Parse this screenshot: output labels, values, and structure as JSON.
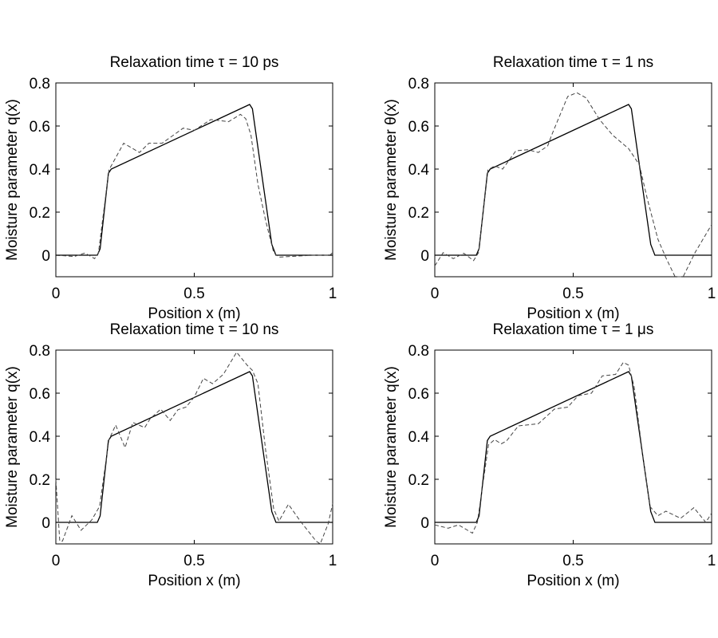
{
  "chart_data": [
    {
      "type": "line",
      "title": "Relaxation time τ = 10 ps",
      "xlabel": "Position x  (m)",
      "ylabel": "Moisture parameter q(x)",
      "xlim": [
        0,
        1
      ],
      "ylim": [
        -0.1,
        0.8
      ],
      "xticks": [
        "0",
        "0.5",
        "1"
      ],
      "yticks": [
        "0",
        "0.2",
        "0.4",
        "0.6",
        "0.8"
      ],
      "grid": false,
      "series": [
        {
          "style": "solid",
          "points": [
            [
              0,
              0
            ],
            [
              0.15,
              0
            ],
            [
              0.16,
              0.03
            ],
            [
              0.19,
              0.38
            ],
            [
              0.2,
              0.4
            ],
            [
              0.7,
              0.7
            ],
            [
              0.71,
              0.68
            ],
            [
              0.73,
              0.5
            ],
            [
              0.78,
              0.05
            ],
            [
              0.795,
              0
            ],
            [
              1,
              0
            ]
          ]
        },
        {
          "style": "dashed",
          "points": [
            [
              0,
              0
            ],
            [
              0.067,
              -0.006
            ],
            [
              0.105,
              0.01
            ],
            [
              0.14,
              -0.016
            ],
            [
              0.154,
              0.012
            ],
            [
              0.192,
              0.396
            ],
            [
              0.245,
              0.52
            ],
            [
              0.302,
              0.477
            ],
            [
              0.336,
              0.52
            ],
            [
              0.384,
              0.52
            ],
            [
              0.46,
              0.59
            ],
            [
              0.5,
              0.58
            ],
            [
              0.56,
              0.63
            ],
            [
              0.624,
              0.62
            ],
            [
              0.667,
              0.654
            ],
            [
              0.686,
              0.634
            ],
            [
              0.705,
              0.557
            ],
            [
              0.73,
              0.33
            ],
            [
              0.758,
              0.16
            ],
            [
              0.787,
              0.012
            ],
            [
              0.806,
              -0.009
            ],
            [
              0.93,
              0
            ],
            [
              0.99,
              0
            ],
            [
              1,
              0.012
            ]
          ]
        }
      ]
    },
    {
      "type": "line",
      "title": "Relaxation time τ = 1 ns",
      "xlabel": "Position x  (m)",
      "ylabel": "Moisture parameter θ(x)",
      "xlim": [
        0,
        1
      ],
      "ylim": [
        -0.1,
        0.8
      ],
      "xticks": [
        "0",
        "0.5",
        "1"
      ],
      "yticks": [
        "0",
        "0.2",
        "0.4",
        "0.6",
        "0.8"
      ],
      "grid": false,
      "series": [
        {
          "style": "solid",
          "points": [
            [
              0,
              0
            ],
            [
              0.15,
              0
            ],
            [
              0.16,
              0.03
            ],
            [
              0.19,
              0.38
            ],
            [
              0.2,
              0.4
            ],
            [
              0.7,
              0.7
            ],
            [
              0.71,
              0.68
            ],
            [
              0.73,
              0.5
            ],
            [
              0.78,
              0.05
            ],
            [
              0.795,
              0
            ],
            [
              1,
              0
            ]
          ]
        },
        {
          "style": "dashed",
          "points": [
            [
              0,
              -0.05
            ],
            [
              0.03,
              0.012
            ],
            [
              0.067,
              -0.016
            ],
            [
              0.105,
              0.009
            ],
            [
              0.14,
              -0.025
            ],
            [
              0.158,
              0.012
            ],
            [
              0.192,
              0.396
            ],
            [
              0.216,
              0.415
            ],
            [
              0.245,
              0.4
            ],
            [
              0.293,
              0.485
            ],
            [
              0.336,
              0.49
            ],
            [
              0.374,
              0.477
            ],
            [
              0.408,
              0.508
            ],
            [
              0.422,
              0.557
            ],
            [
              0.48,
              0.737
            ],
            [
              0.513,
              0.755
            ],
            [
              0.547,
              0.73
            ],
            [
              0.595,
              0.63
            ],
            [
              0.643,
              0.557
            ],
            [
              0.7,
              0.495
            ],
            [
              0.739,
              0.42
            ],
            [
              0.768,
              0.26
            ],
            [
              0.806,
              0.074
            ],
            [
              0.835,
              -0.012
            ],
            [
              0.868,
              -0.1
            ],
            [
              0.897,
              -0.1
            ],
            [
              0.94,
              0.012
            ],
            [
              1,
              0.142
            ]
          ]
        }
      ]
    },
    {
      "type": "line",
      "title": "Relaxation time τ = 10 ns",
      "xlabel": "Position x  (m)",
      "ylabel": "Moisture parameter q(x)",
      "xlim": [
        0,
        1
      ],
      "ylim": [
        -0.1,
        0.8
      ],
      "xticks": [
        "0",
        "0.5",
        "1"
      ],
      "yticks": [
        "0",
        "0.2",
        "0.4",
        "0.6",
        "0.8"
      ],
      "grid": false,
      "series": [
        {
          "style": "solid",
          "points": [
            [
              0,
              0
            ],
            [
              0.15,
              0
            ],
            [
              0.16,
              0.03
            ],
            [
              0.19,
              0.38
            ],
            [
              0.2,
              0.4
            ],
            [
              0.7,
              0.7
            ],
            [
              0.71,
              0.68
            ],
            [
              0.73,
              0.5
            ],
            [
              0.78,
              0.05
            ],
            [
              0.795,
              0
            ],
            [
              1,
              0
            ]
          ]
        },
        {
          "style": "dashed",
          "points": [
            [
              0,
              0.2
            ],
            [
              0.014,
              -0.087
            ],
            [
              0.024,
              -0.087
            ],
            [
              0.058,
              0.031
            ],
            [
              0.091,
              -0.037
            ],
            [
              0.13,
              0.012
            ],
            [
              0.158,
              0.074
            ],
            [
              0.192,
              0.384
            ],
            [
              0.216,
              0.452
            ],
            [
              0.25,
              0.347
            ],
            [
              0.278,
              0.464
            ],
            [
              0.321,
              0.44
            ],
            [
              0.34,
              0.48
            ],
            [
              0.379,
              0.526
            ],
            [
              0.413,
              0.473
            ],
            [
              0.441,
              0.523
            ],
            [
              0.47,
              0.535
            ],
            [
              0.5,
              0.582
            ],
            [
              0.533,
              0.669
            ],
            [
              0.566,
              0.644
            ],
            [
              0.605,
              0.687
            ],
            [
              0.653,
              0.79
            ],
            [
              0.691,
              0.73
            ],
            [
              0.71,
              0.706
            ],
            [
              0.73,
              0.644
            ],
            [
              0.758,
              0.334
            ],
            [
              0.787,
              0.062
            ],
            [
              0.806,
              0.006
            ],
            [
              0.84,
              0.084
            ],
            [
              0.883,
              0.006
            ],
            [
              0.94,
              -0.087
            ],
            [
              0.955,
              -0.1
            ],
            [
              0.984,
              -0.006
            ],
            [
              1,
              0.087
            ]
          ]
        }
      ]
    },
    {
      "type": "line",
      "title": "Relaxation time τ = 1 μs",
      "xlabel": "Position x  (m)",
      "ylabel": "Moisture parameter q(x)",
      "xlim": [
        0,
        1
      ],
      "ylim": [
        -0.1,
        0.8
      ],
      "xticks": [
        "0",
        "0.5",
        "1"
      ],
      "yticks": [
        "0",
        "0.2",
        "0.4",
        "0.6",
        "0.8"
      ],
      "grid": false,
      "series": [
        {
          "style": "solid",
          "points": [
            [
              0,
              0
            ],
            [
              0.15,
              0
            ],
            [
              0.16,
              0.03
            ],
            [
              0.19,
              0.38
            ],
            [
              0.2,
              0.4
            ],
            [
              0.7,
              0.7
            ],
            [
              0.71,
              0.68
            ],
            [
              0.73,
              0.5
            ],
            [
              0.78,
              0.05
            ],
            [
              0.795,
              0
            ],
            [
              1,
              0
            ]
          ]
        },
        {
          "style": "dashed",
          "points": [
            [
              0,
              -0.012
            ],
            [
              0.048,
              -0.027
            ],
            [
              0.086,
              -0.012
            ],
            [
              0.136,
              -0.05
            ],
            [
              0.154,
              0
            ],
            [
              0.194,
              0.36
            ],
            [
              0.216,
              0.384
            ],
            [
              0.24,
              0.365
            ],
            [
              0.259,
              0.378
            ],
            [
              0.302,
              0.448
            ],
            [
              0.374,
              0.458
            ],
            [
              0.432,
              0.526
            ],
            [
              0.48,
              0.535
            ],
            [
              0.518,
              0.588
            ],
            [
              0.566,
              0.6
            ],
            [
              0.605,
              0.68
            ],
            [
              0.653,
              0.687
            ],
            [
              0.681,
              0.743
            ],
            [
              0.7,
              0.73
            ],
            [
              0.72,
              0.632
            ],
            [
              0.749,
              0.334
            ],
            [
              0.777,
              0.074
            ],
            [
              0.806,
              0.031
            ],
            [
              0.835,
              0.052
            ],
            [
              0.888,
              0.019
            ],
            [
              0.936,
              0.068
            ],
            [
              0.979,
              0
            ],
            [
              1,
              0.043
            ]
          ]
        }
      ]
    }
  ]
}
